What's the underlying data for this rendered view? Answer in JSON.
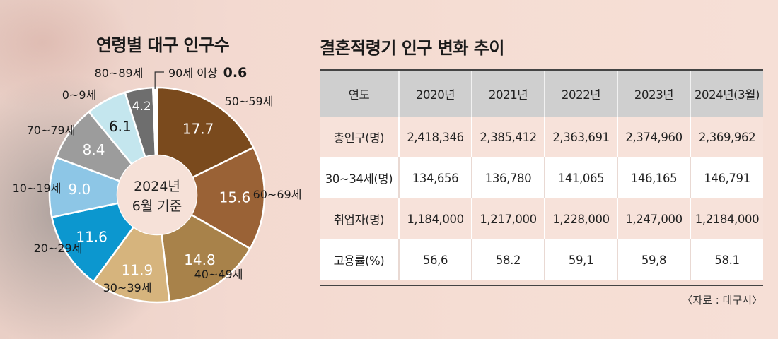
{
  "pie_chart": {
    "title": "연령별 대구 인구수",
    "center_label_line1": "2024년",
    "center_label_line2": "6월 기준"
  },
  "table": {
    "title": "결혼적령기 인구 변화 추이",
    "headers": [
      "연도",
      "2020년",
      "2021년",
      "2022년",
      "2023년",
      "2024년(3월)"
    ],
    "rows": [
      [
        "총인구(명)",
        "2,418,346",
        "2,385,412",
        "2,363,691",
        "2,374,960",
        "2,369,962"
      ],
      [
        "30~34세(명)",
        "134,656",
        "136,780",
        "141,065",
        "146,165",
        "146,791"
      ],
      [
        "취업자(명)",
        "1,184,000",
        "1,217,000",
        "1,228,000",
        "1,247,000",
        "1,2184,000"
      ],
      [
        "고용률(%)",
        "56,6",
        "58.2",
        "59,1",
        "59,8",
        "58.1"
      ]
    ],
    "source": "〈자료 : 대구시〉"
  },
  "chart_data": [
    {
      "type": "pie",
      "title": "연령별 대구 인구수",
      "subtitle": "2024년 6월 기준",
      "categories": [
        "50~59세",
        "60~69세",
        "40~49세",
        "30~39세",
        "20~29세",
        "10~19세",
        "70~79세",
        "0~9세",
        "80~89세",
        "90세 이상"
      ],
      "values": [
        17.7,
        15.6,
        14.8,
        11.9,
        11.6,
        9.0,
        8.4,
        6.1,
        4.2,
        0.6
      ],
      "value_labels": [
        "17.7",
        "15.6",
        "14.8",
        "11.9",
        "11.6",
        "9.0",
        "8.4",
        "6.1",
        "4.2",
        "0.6"
      ],
      "colors": [
        "#7a4a1d",
        "#9a6236",
        "#a8824a",
        "#d6b47d",
        "#0c97cf",
        "#8dc6e6",
        "#9c9c9c",
        "#c4e6ee",
        "#6e6e6e",
        "#ffffff"
      ],
      "label_colors": [
        "#ffffff",
        "#ffffff",
        "#ffffff",
        "#ffffff",
        "#ffffff",
        "#ffffff",
        "#ffffff",
        "#111111",
        "#ffffff",
        "#111111"
      ]
    },
    {
      "type": "table",
      "title": "결혼적령기 인구 변화 추이",
      "columns": [
        "연도",
        "2020년",
        "2021년",
        "2022년",
        "2023년",
        "2024년(3월)"
      ],
      "rows": [
        [
          "총인구(명)",
          "2,418,346",
          "2,385,412",
          "2,363,691",
          "2,374,960",
          "2,369,962"
        ],
        [
          "30~34세(명)",
          "134,656",
          "136,780",
          "141,065",
          "146,165",
          "146,791"
        ],
        [
          "취업자(명)",
          "1,184,000",
          "1,217,000",
          "1,228,000",
          "1,247,000",
          "1,2184,000"
        ],
        [
          "고용률(%)",
          "56,6",
          "58.2",
          "59,1",
          "59,8",
          "58.1"
        ]
      ]
    }
  ]
}
